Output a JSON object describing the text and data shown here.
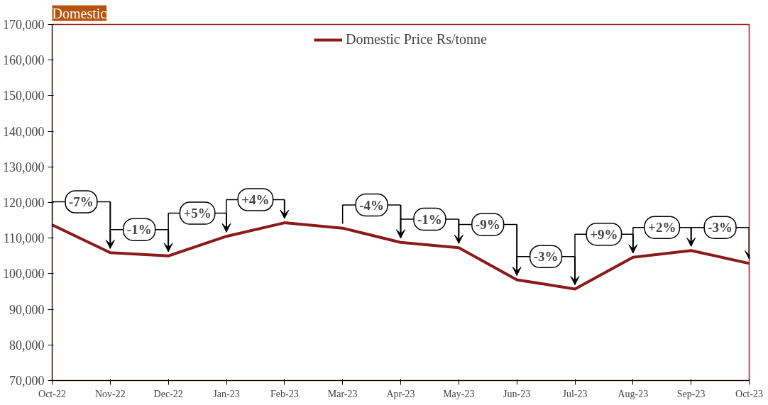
{
  "chart_data": {
    "type": "line",
    "title": "Domestic",
    "categories": [
      "Oct-22",
      "Nov-22",
      "Dec-22",
      "Jan-23",
      "Feb-23",
      "Mar-23",
      "Apr-23",
      "May-23",
      "Jun-23",
      "Jul-23",
      "Aug-23",
      "Sep-23",
      "Oct-23"
    ],
    "series": [
      {
        "name": "Domestic Price Rs/tonne",
        "color": "#8b1a1a",
        "values": [
          113700,
          105900,
          105000,
          110500,
          114300,
          112800,
          108800,
          107300,
          98300,
          95700,
          104600,
          106500,
          102900
        ]
      }
    ],
    "ylim": [
      70000,
      170000
    ],
    "yticks": [
      {
        "value": 70000,
        "label": "70,000"
      },
      {
        "value": 80000,
        "label": "80,000"
      },
      {
        "value": 90000,
        "label": "90,000"
      },
      {
        "value": 100000,
        "label": "100,000"
      },
      {
        "value": 110000,
        "label": "110,000"
      },
      {
        "value": 120000,
        "label": "120,000"
      },
      {
        "value": 130000,
        "label": "130,000"
      },
      {
        "value": 140000,
        "label": "140,000"
      },
      {
        "value": 150000,
        "label": "150,000"
      },
      {
        "value": 160000,
        "label": "160,000"
      },
      {
        "value": 170000,
        "label": "170,000"
      }
    ],
    "annotations": [
      {
        "text": "-7%",
        "x": "Nov-22",
        "y": 105900
      },
      {
        "text": "-1%",
        "x": "Dec-22",
        "y": 105000
      },
      {
        "text": "+5%",
        "x": "Jan-23",
        "y": 110500
      },
      {
        "text": "+4%",
        "x": "Feb-23",
        "y": 114300
      },
      {
        "text": "-4%",
        "x": "Apr-23",
        "y": 108800
      },
      {
        "text": "-1%",
        "x": "May-23",
        "y": 107300
      },
      {
        "text": "-9%",
        "x": "Jun-23",
        "y": 98300
      },
      {
        "text": "-3%",
        "x": "Jul-23",
        "y": 95700
      },
      {
        "text": "+9%",
        "x": "Aug-23",
        "y": 104600
      },
      {
        "text": "+2%",
        "x": "Sep-23",
        "y": 106500
      },
      {
        "text": "-3%",
        "x": "Oct-23",
        "y": 102900
      }
    ],
    "grid": false,
    "legend": "top",
    "marker": "none",
    "line_style": "solid"
  }
}
